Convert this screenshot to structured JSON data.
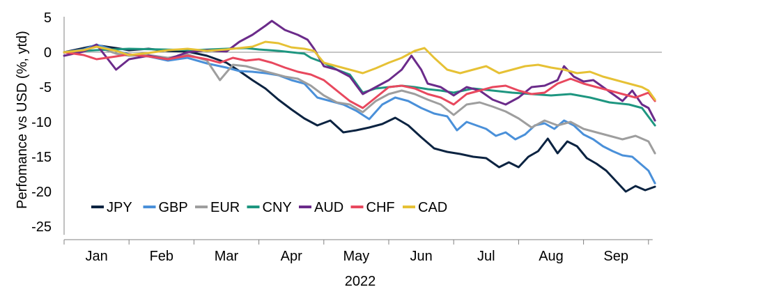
{
  "chart_data": {
    "type": "line",
    "title": "",
    "ylabel": "Perfomance vs USD (%, ytd)",
    "xlabel": "2022",
    "ylim": [
      -25,
      5
    ],
    "y_ticks": [
      5,
      0,
      -5,
      -10,
      -15,
      -20,
      -25
    ],
    "x_ticks": [
      "Jan",
      "Feb",
      "Mar",
      "Apr",
      "May",
      "Jun",
      "Jul",
      "Aug",
      "Sep"
    ],
    "zero_line": true,
    "grid": false,
    "legend_position": "bottom-left, inside plot",
    "series": [
      {
        "name": "JPY",
        "color": "#0b2341",
        "points": [
          [
            0,
            0
          ],
          [
            0.3,
            0.6
          ],
          [
            0.5,
            1.0
          ],
          [
            0.8,
            0.6
          ],
          [
            1.0,
            0.3
          ],
          [
            1.3,
            0.5
          ],
          [
            1.6,
            0.2
          ],
          [
            1.9,
            0.1
          ],
          [
            2.2,
            -0.5
          ],
          [
            2.5,
            -1.5
          ],
          [
            2.7,
            -2.7
          ],
          [
            2.9,
            -4.0
          ],
          [
            3.1,
            -5.2
          ],
          [
            3.3,
            -6.8
          ],
          [
            3.5,
            -8.2
          ],
          [
            3.7,
            -9.5
          ],
          [
            3.9,
            -10.5
          ],
          [
            4.1,
            -9.8
          ],
          [
            4.3,
            -11.5
          ],
          [
            4.5,
            -11.2
          ],
          [
            4.7,
            -10.8
          ],
          [
            4.9,
            -10.3
          ],
          [
            5.1,
            -9.4
          ],
          [
            5.3,
            -10.5
          ],
          [
            5.5,
            -12.2
          ],
          [
            5.7,
            -13.8
          ],
          [
            5.9,
            -14.3
          ],
          [
            6.1,
            -14.6
          ],
          [
            6.3,
            -15.0
          ],
          [
            6.5,
            -15.2
          ],
          [
            6.7,
            -16.5
          ],
          [
            6.85,
            -15.8
          ],
          [
            7.0,
            -16.5
          ],
          [
            7.15,
            -15.0
          ],
          [
            7.3,
            -14.2
          ],
          [
            7.45,
            -12.4
          ],
          [
            7.6,
            -14.5
          ],
          [
            7.75,
            -12.8
          ],
          [
            7.9,
            -13.5
          ],
          [
            8.05,
            -15.2
          ],
          [
            8.2,
            -16.0
          ],
          [
            8.35,
            -17.0
          ],
          [
            8.5,
            -18.5
          ],
          [
            8.65,
            -20.0
          ],
          [
            8.8,
            -19.2
          ],
          [
            8.95,
            -19.8
          ],
          [
            9.1,
            -19.3
          ]
        ]
      },
      {
        "name": "GBP",
        "color": "#4a90d9",
        "points": [
          [
            0,
            0
          ],
          [
            0.3,
            0.4
          ],
          [
            0.5,
            1.1
          ],
          [
            0.8,
            0.2
          ],
          [
            1.0,
            -0.3
          ],
          [
            1.3,
            -0.6
          ],
          [
            1.6,
            -1.2
          ],
          [
            1.9,
            -0.8
          ],
          [
            2.2,
            -1.6
          ],
          [
            2.5,
            -2.2
          ],
          [
            2.7,
            -2.7
          ],
          [
            2.9,
            -2.8
          ],
          [
            3.1,
            -3.0
          ],
          [
            3.3,
            -3.3
          ],
          [
            3.5,
            -4.0
          ],
          [
            3.7,
            -4.5
          ],
          [
            3.9,
            -6.5
          ],
          [
            4.1,
            -7.0
          ],
          [
            4.3,
            -7.5
          ],
          [
            4.5,
            -8.4
          ],
          [
            4.7,
            -9.6
          ],
          [
            4.9,
            -7.5
          ],
          [
            5.1,
            -6.5
          ],
          [
            5.3,
            -7.0
          ],
          [
            5.5,
            -8.0
          ],
          [
            5.7,
            -8.8
          ],
          [
            5.9,
            -9.2
          ],
          [
            6.05,
            -11.2
          ],
          [
            6.2,
            -10.0
          ],
          [
            6.35,
            -10.5
          ],
          [
            6.5,
            -11.0
          ],
          [
            6.65,
            -12.0
          ],
          [
            6.8,
            -11.5
          ],
          [
            6.95,
            -12.5
          ],
          [
            7.1,
            -11.8
          ],
          [
            7.25,
            -10.5
          ],
          [
            7.4,
            -10.2
          ],
          [
            7.55,
            -11.0
          ],
          [
            7.7,
            -9.8
          ],
          [
            7.85,
            -10.5
          ],
          [
            8.0,
            -11.8
          ],
          [
            8.15,
            -12.5
          ],
          [
            8.3,
            -13.5
          ],
          [
            8.45,
            -14.2
          ],
          [
            8.6,
            -14.8
          ],
          [
            8.75,
            -15.0
          ],
          [
            8.9,
            -16.2
          ],
          [
            9.0,
            -17.0
          ],
          [
            9.1,
            -18.8
          ]
        ]
      },
      {
        "name": "EUR",
        "color": "#9e9e9e",
        "points": [
          [
            0,
            0
          ],
          [
            0.3,
            0.3
          ],
          [
            0.5,
            0.8
          ],
          [
            0.8,
            -0.2
          ],
          [
            1.0,
            -0.5
          ],
          [
            1.3,
            -0.4
          ],
          [
            1.6,
            -0.8
          ],
          [
            1.9,
            -0.3
          ],
          [
            2.2,
            -1.2
          ],
          [
            2.4,
            -4.0
          ],
          [
            2.6,
            -1.8
          ],
          [
            2.8,
            -2.0
          ],
          [
            3.0,
            -2.5
          ],
          [
            3.2,
            -3.0
          ],
          [
            3.4,
            -3.5
          ],
          [
            3.6,
            -3.8
          ],
          [
            3.8,
            -4.8
          ],
          [
            4.0,
            -6.2
          ],
          [
            4.2,
            -7.2
          ],
          [
            4.4,
            -7.5
          ],
          [
            4.6,
            -8.6
          ],
          [
            4.8,
            -7.0
          ],
          [
            5.0,
            -6.0
          ],
          [
            5.2,
            -5.5
          ],
          [
            5.4,
            -6.0
          ],
          [
            5.6,
            -6.8
          ],
          [
            5.8,
            -7.5
          ],
          [
            6.0,
            -9.0
          ],
          [
            6.2,
            -7.5
          ],
          [
            6.4,
            -7.2
          ],
          [
            6.6,
            -7.8
          ],
          [
            6.8,
            -8.5
          ],
          [
            7.0,
            -9.5
          ],
          [
            7.2,
            -10.8
          ],
          [
            7.4,
            -9.8
          ],
          [
            7.6,
            -10.5
          ],
          [
            7.8,
            -10.0
          ],
          [
            8.0,
            -11.0
          ],
          [
            8.2,
            -11.5
          ],
          [
            8.4,
            -12.0
          ],
          [
            8.6,
            -12.5
          ],
          [
            8.8,
            -12.0
          ],
          [
            9.0,
            -12.8
          ],
          [
            9.1,
            -14.5
          ]
        ]
      },
      {
        "name": "CNY",
        "color": "#1e9680",
        "points": [
          [
            0,
            0
          ],
          [
            0.5,
            0.3
          ],
          [
            1.0,
            0.5
          ],
          [
            1.5,
            0.4
          ],
          [
            2.0,
            0.3
          ],
          [
            2.5,
            0.5
          ],
          [
            2.8,
            0.6
          ],
          [
            3.0,
            0.4
          ],
          [
            3.3,
            0.2
          ],
          [
            3.5,
            0.0
          ],
          [
            3.7,
            -0.2
          ],
          [
            3.8,
            -0.8
          ],
          [
            4.0,
            -1.5
          ],
          [
            4.2,
            -2.5
          ],
          [
            4.4,
            -3.2
          ],
          [
            4.6,
            -5.8
          ],
          [
            4.8,
            -5.2
          ],
          [
            5.0,
            -5.0
          ],
          [
            5.2,
            -4.8
          ],
          [
            5.4,
            -5.0
          ],
          [
            5.6,
            -5.3
          ],
          [
            5.8,
            -5.5
          ],
          [
            6.0,
            -5.8
          ],
          [
            6.3,
            -5.2
          ],
          [
            6.6,
            -5.5
          ],
          [
            6.9,
            -5.8
          ],
          [
            7.2,
            -6.0
          ],
          [
            7.5,
            -6.2
          ],
          [
            7.8,
            -6.0
          ],
          [
            8.1,
            -6.5
          ],
          [
            8.4,
            -7.2
          ],
          [
            8.7,
            -7.5
          ],
          [
            8.9,
            -8.0
          ],
          [
            9.1,
            -10.5
          ]
        ]
      },
      {
        "name": "AUD",
        "color": "#6b2b8a",
        "points": [
          [
            0,
            -0.5
          ],
          [
            0.3,
            0.1
          ],
          [
            0.5,
            1.1
          ],
          [
            0.8,
            -2.5
          ],
          [
            1.0,
            -1.0
          ],
          [
            1.3,
            -0.5
          ],
          [
            1.6,
            -1.0
          ],
          [
            1.9,
            0.0
          ],
          [
            2.2,
            0.3
          ],
          [
            2.5,
            0.1
          ],
          [
            2.7,
            1.5
          ],
          [
            2.9,
            2.5
          ],
          [
            3.1,
            3.8
          ],
          [
            3.2,
            4.5
          ],
          [
            3.4,
            3.2
          ],
          [
            3.6,
            2.5
          ],
          [
            3.75,
            1.8
          ],
          [
            3.85,
            0.5
          ],
          [
            4.0,
            -2.0
          ],
          [
            4.2,
            -2.5
          ],
          [
            4.4,
            -3.5
          ],
          [
            4.6,
            -6.0
          ],
          [
            4.8,
            -5.0
          ],
          [
            5.0,
            -4.0
          ],
          [
            5.2,
            -2.5
          ],
          [
            5.35,
            -0.5
          ],
          [
            5.5,
            -2.5
          ],
          [
            5.6,
            -4.5
          ],
          [
            5.8,
            -5.0
          ],
          [
            6.0,
            -6.2
          ],
          [
            6.2,
            -5.0
          ],
          [
            6.4,
            -5.5
          ],
          [
            6.6,
            -6.8
          ],
          [
            6.8,
            -7.5
          ],
          [
            7.0,
            -6.5
          ],
          [
            7.2,
            -5.0
          ],
          [
            7.4,
            -4.8
          ],
          [
            7.6,
            -4.0
          ],
          [
            7.7,
            -2.0
          ],
          [
            7.85,
            -3.5
          ],
          [
            8.0,
            -4.2
          ],
          [
            8.15,
            -4.0
          ],
          [
            8.3,
            -5.0
          ],
          [
            8.45,
            -6.0
          ],
          [
            8.6,
            -7.0
          ],
          [
            8.75,
            -5.5
          ],
          [
            8.9,
            -7.5
          ],
          [
            9.0,
            -8.0
          ],
          [
            9.1,
            -9.8
          ]
        ]
      },
      {
        "name": "CHF",
        "color": "#e8485e",
        "points": [
          [
            0,
            0
          ],
          [
            0.3,
            -0.4
          ],
          [
            0.5,
            -1.0
          ],
          [
            0.8,
            -0.6
          ],
          [
            1.0,
            -0.3
          ],
          [
            1.3,
            -0.6
          ],
          [
            1.6,
            -1.0
          ],
          [
            1.9,
            -0.5
          ],
          [
            2.2,
            -1.0
          ],
          [
            2.4,
            -1.5
          ],
          [
            2.6,
            -0.8
          ],
          [
            2.8,
            -1.2
          ],
          [
            3.0,
            -1.0
          ],
          [
            3.2,
            -1.5
          ],
          [
            3.4,
            -2.2
          ],
          [
            3.6,
            -2.8
          ],
          [
            3.8,
            -3.2
          ],
          [
            4.0,
            -4.0
          ],
          [
            4.2,
            -5.5
          ],
          [
            4.4,
            -7.0
          ],
          [
            4.6,
            -8.0
          ],
          [
            4.8,
            -6.5
          ],
          [
            5.0,
            -5.0
          ],
          [
            5.2,
            -4.8
          ],
          [
            5.4,
            -5.2
          ],
          [
            5.6,
            -6.0
          ],
          [
            5.8,
            -6.5
          ],
          [
            6.0,
            -7.5
          ],
          [
            6.2,
            -6.0
          ],
          [
            6.4,
            -5.5
          ],
          [
            6.6,
            -5.0
          ],
          [
            6.8,
            -4.8
          ],
          [
            7.0,
            -5.5
          ],
          [
            7.2,
            -6.0
          ],
          [
            7.4,
            -5.8
          ],
          [
            7.6,
            -4.5
          ],
          [
            7.8,
            -3.8
          ],
          [
            8.0,
            -4.5
          ],
          [
            8.2,
            -5.0
          ],
          [
            8.4,
            -5.5
          ],
          [
            8.6,
            -6.0
          ],
          [
            8.8,
            -6.5
          ],
          [
            9.0,
            -5.8
          ],
          [
            9.1,
            -7.0
          ]
        ]
      },
      {
        "name": "CAD",
        "color": "#e6c135",
        "points": [
          [
            0,
            0
          ],
          [
            0.3,
            0.3
          ],
          [
            0.5,
            0.8
          ],
          [
            0.8,
            0.2
          ],
          [
            1.0,
            -0.4
          ],
          [
            1.3,
            -0.1
          ],
          [
            1.6,
            0.3
          ],
          [
            1.9,
            0.5
          ],
          [
            2.2,
            0.2
          ],
          [
            2.5,
            0.4
          ],
          [
            2.7,
            0.6
          ],
          [
            2.9,
            0.8
          ],
          [
            3.1,
            1.5
          ],
          [
            3.3,
            1.3
          ],
          [
            3.5,
            0.7
          ],
          [
            3.7,
            0.5
          ],
          [
            3.85,
            0.2
          ],
          [
            4.0,
            -1.5
          ],
          [
            4.2,
            -2.0
          ],
          [
            4.4,
            -2.5
          ],
          [
            4.6,
            -3.0
          ],
          [
            4.8,
            -2.3
          ],
          [
            5.0,
            -1.5
          ],
          [
            5.2,
            -0.8
          ],
          [
            5.4,
            0.2
          ],
          [
            5.55,
            0.6
          ],
          [
            5.7,
            -0.8
          ],
          [
            5.9,
            -2.5
          ],
          [
            6.1,
            -3.0
          ],
          [
            6.3,
            -2.5
          ],
          [
            6.5,
            -2.0
          ],
          [
            6.7,
            -3.0
          ],
          [
            6.9,
            -2.5
          ],
          [
            7.1,
            -2.0
          ],
          [
            7.3,
            -1.8
          ],
          [
            7.5,
            -2.2
          ],
          [
            7.7,
            -2.5
          ],
          [
            7.9,
            -3.0
          ],
          [
            8.1,
            -2.8
          ],
          [
            8.3,
            -3.5
          ],
          [
            8.5,
            -4.0
          ],
          [
            8.7,
            -4.5
          ],
          [
            8.9,
            -5.0
          ],
          [
            9.0,
            -5.5
          ],
          [
            9.1,
            -6.8
          ]
        ]
      }
    ]
  }
}
